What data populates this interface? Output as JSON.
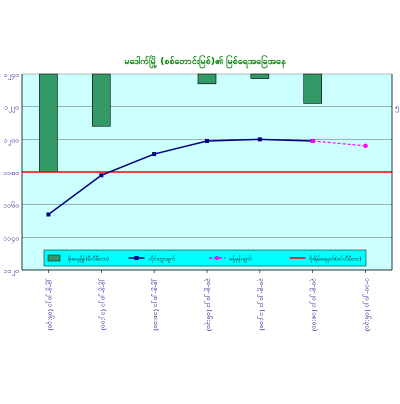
{
  "chart_data": {
    "type": "bar+line",
    "title": "မဒေါက်မြို့ (စစ်တောင်းမြစ်)၏ မြစ်ရေအခြေအနေ",
    "categories": [
      "၂၉-၉-၂၀၂၁ (၀၆:၃၀)",
      "၂၉-၉-၂၀၂၁ (၁၂:၀၀)",
      "၂၉-၉-၂၀၂၁ (၁၈:၀၀)",
      "၃၀-၉-၂၀၂၁ (၀၆:၃၀)",
      "၃၀-၉-၂၀၂၁ (၁၂:၀၀)",
      "၃၀-၉-၂၀၂၁ (၁၈:၀၀)",
      "၁-၁၀-၂၀၂၁ (၀၆:၃၀)"
    ],
    "left_axis": {
      "ticks": [
        1240,
        1220,
        1200,
        1180,
        1160,
        1140,
        1120
      ],
      "tick_labels": [
        "၁၂၄၀",
        "၁၂၂၀",
        "၁၂၀၀",
        "၁၁၈၀",
        "၁၁၆၀",
        "၁၁၄၀",
        "၁၁၂၀"
      ],
      "ylim": [
        1120,
        1240
      ]
    },
    "right_axis": {
      "ticks": [
        0,
        5,
        10,
        15,
        20,
        25,
        30
      ],
      "tick_labels": [
        "",
        "၅",
        "",
        "",
        "",
        "",
        ""
      ],
      "ylim": [
        0,
        30
      ],
      "inverted": true
    },
    "rainfall": {
      "name": "မိုးရေချိန်(မီလီမီတာ)",
      "values": [
        15,
        8,
        0,
        1.5,
        0.7,
        4.5,
        0
      ]
    },
    "observed": {
      "name": "တိုင်းထွာချက်",
      "values": [
        1154,
        1178,
        1191,
        1199,
        1200,
        1199,
        null
      ]
    },
    "forecast": {
      "name": "ခန့်မှန်းချက်",
      "values": [
        null,
        null,
        null,
        null,
        null,
        1199,
        1196
      ]
    },
    "danger_level": {
      "name": "စိုးရိမ်ရေမှတ်(စင်တီမီတာ)",
      "value": 1180
    },
    "colors": {
      "plot_bg": "#ccffff",
      "bar": "#339966",
      "observed": "#000080",
      "forecast": "#ff00ff",
      "danger": "#ff0000",
      "title": "#008000",
      "axis_text": "#000080",
      "legend_box": "#00ffff"
    },
    "grid": true,
    "legend_position": "bottom"
  }
}
